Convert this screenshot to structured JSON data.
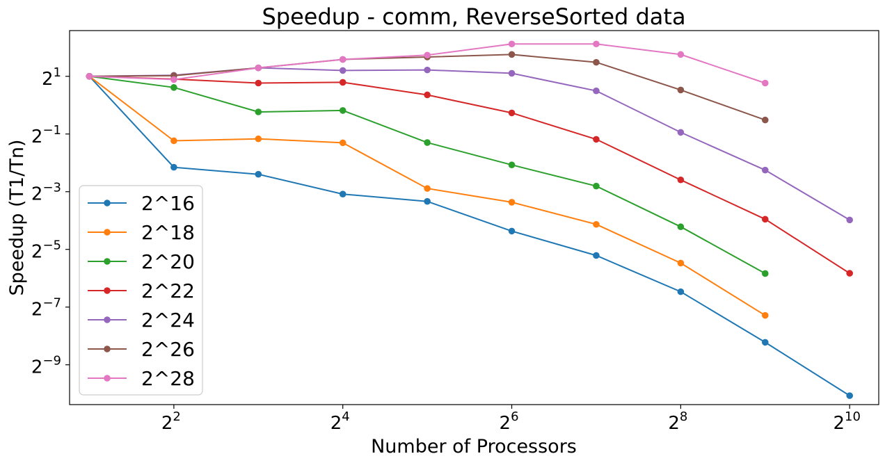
{
  "chart_data": {
    "type": "line",
    "title": "Speedup - comm, ReverseSorted data",
    "xlabel": "Number of Processors",
    "ylabel": "Speedup (T1/Tn)",
    "xscale": "log2",
    "yscale": "log2",
    "xlim": [
      1.7,
      1300
    ],
    "ylim": [
      0.00075,
      6.0
    ],
    "x_ticks": [
      {
        "base": "2",
        "exp": "2",
        "value": 4
      },
      {
        "base": "2",
        "exp": "4",
        "value": 16
      },
      {
        "base": "2",
        "exp": "6",
        "value": 64
      },
      {
        "base": "2",
        "exp": "8",
        "value": 256
      },
      {
        "base": "2",
        "exp": "10",
        "value": 1024
      }
    ],
    "y_ticks": [
      {
        "base": "2",
        "exp": "1",
        "value": 2
      },
      {
        "base": "2",
        "exp": "−1",
        "value": 0.5
      },
      {
        "base": "2",
        "exp": "−3",
        "value": 0.125
      },
      {
        "base": "2",
        "exp": "−5",
        "value": 0.03125
      },
      {
        "base": "2",
        "exp": "−7",
        "value": 0.0078125
      },
      {
        "base": "2",
        "exp": "−9",
        "value": 0.001953125
      }
    ],
    "grid": false,
    "legend_position": "center-left",
    "series": [
      {
        "name": "2^16",
        "color": "#1f77b4",
        "x": [
          2,
          4,
          8,
          16,
          32,
          64,
          128,
          256,
          512,
          1024
        ],
        "y": [
          2.0,
          0.225,
          0.19,
          0.118,
          0.099,
          0.0485,
          0.027,
          0.0113,
          0.00335,
          0.00093
        ]
      },
      {
        "name": "2^18",
        "color": "#ff7f0e",
        "x": [
          2,
          4,
          8,
          16,
          32,
          64,
          128,
          256,
          512
        ],
        "y": [
          2.0,
          0.425,
          0.445,
          0.405,
          0.135,
          0.097,
          0.057,
          0.0225,
          0.0064
        ]
      },
      {
        "name": "2^20",
        "color": "#2ca02c",
        "x": [
          2,
          4,
          8,
          16,
          32,
          64,
          128,
          256,
          512
        ],
        "y": [
          2.0,
          1.53,
          0.85,
          0.88,
          0.407,
          0.238,
          0.143,
          0.0538,
          0.0175
        ]
      },
      {
        "name": "2^22",
        "color": "#d62728",
        "x": [
          2,
          4,
          8,
          16,
          32,
          64,
          128,
          256,
          512,
          1024
        ],
        "y": [
          2.0,
          1.87,
          1.7,
          1.73,
          1.28,
          0.83,
          0.44,
          0.166,
          0.0645,
          0.0176
        ]
      },
      {
        "name": "2^24",
        "color": "#9467bd",
        "x": [
          2,
          4,
          8,
          16,
          32,
          64,
          128,
          256,
          512,
          1024
        ],
        "y": [
          2.0,
          2.05,
          2.45,
          2.3,
          2.33,
          2.15,
          1.41,
          0.52,
          0.21,
          0.0634
        ]
      },
      {
        "name": "2^26",
        "color": "#8c564b",
        "x": [
          2,
          4,
          8,
          16,
          32,
          64,
          128,
          256,
          512
        ],
        "y": [
          2.0,
          2.03,
          2.45,
          3.0,
          3.18,
          3.38,
          2.8,
          1.44,
          0.7
        ]
      },
      {
        "name": "2^28",
        "color": "#e377c2",
        "x": [
          2,
          4,
          8,
          16,
          32,
          64,
          128,
          256,
          512
        ],
        "y": [
          2.0,
          1.85,
          2.45,
          3.0,
          3.33,
          4.35,
          4.35,
          3.38,
          1.7
        ]
      }
    ]
  }
}
